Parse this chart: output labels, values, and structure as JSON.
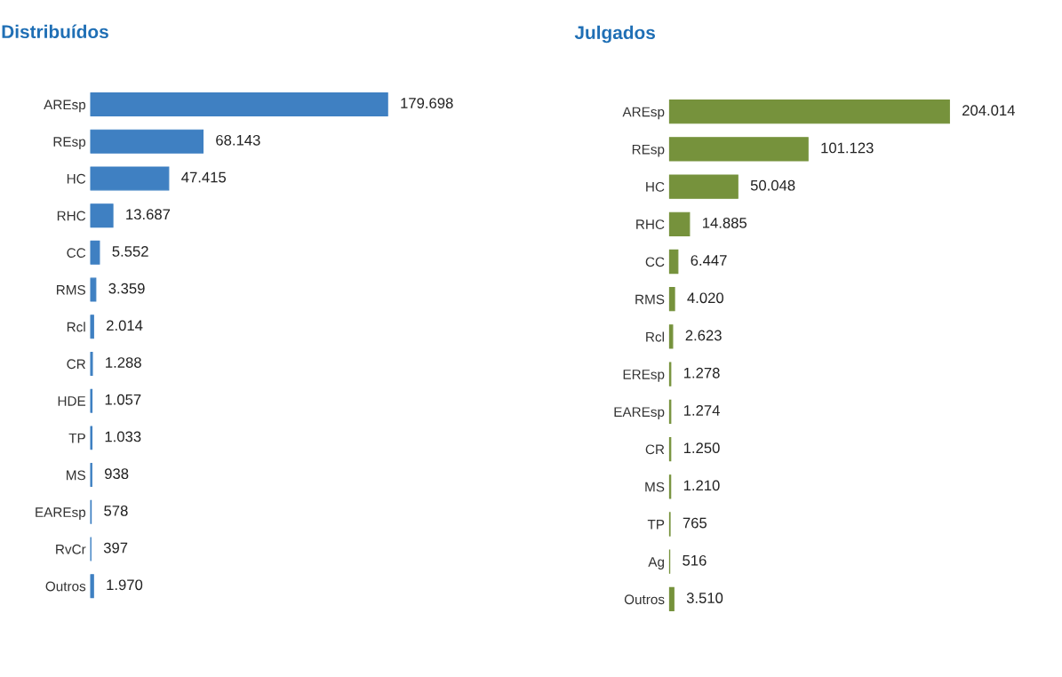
{
  "chart_data": [
    {
      "type": "bar",
      "orientation": "horizontal",
      "title": "Distribuídos",
      "tick_labels": "y",
      "categories": [
        "AREsp",
        "REsp",
        "HC",
        "RHC",
        "CC",
        "RMS",
        "Rcl",
        "CR",
        "HDE",
        "TP",
        "MS",
        "EAREsp",
        "RvCr",
        "Outros"
      ],
      "values": [
        179698,
        68143,
        47415,
        13687,
        5552,
        3359,
        2014,
        1288,
        1057,
        1033,
        938,
        578,
        397,
        1970
      ],
      "value_labels": [
        "179.698",
        "68.143",
        "47.415",
        "13.687",
        "5.552",
        "3.359",
        "2.014",
        "1.288",
        "1.057",
        "1.033",
        "938",
        "578",
        "397",
        "1.970"
      ],
      "color": "#3f80c2"
    },
    {
      "type": "bar",
      "orientation": "horizontal",
      "title": "Julgados",
      "tick_labels": "y",
      "categories": [
        "AREsp",
        "REsp",
        "HC",
        "RHC",
        "CC",
        "RMS",
        "Rcl",
        "EREsp",
        "EAREsp",
        "CR",
        "MS",
        "TP",
        "Ag",
        "Outros"
      ],
      "values": [
        204014,
        101123,
        50048,
        14885,
        6447,
        4020,
        2623,
        1278,
        1274,
        1250,
        1210,
        765,
        516,
        3510
      ],
      "value_labels": [
        "204.014",
        "101.123",
        "50.048",
        "14.885",
        "6.447",
        "4.020",
        "2.623",
        "1.278",
        "1.274",
        "1.250",
        "1.210",
        "765",
        "516",
        "3.510"
      ],
      "color": "#76923c"
    }
  ]
}
